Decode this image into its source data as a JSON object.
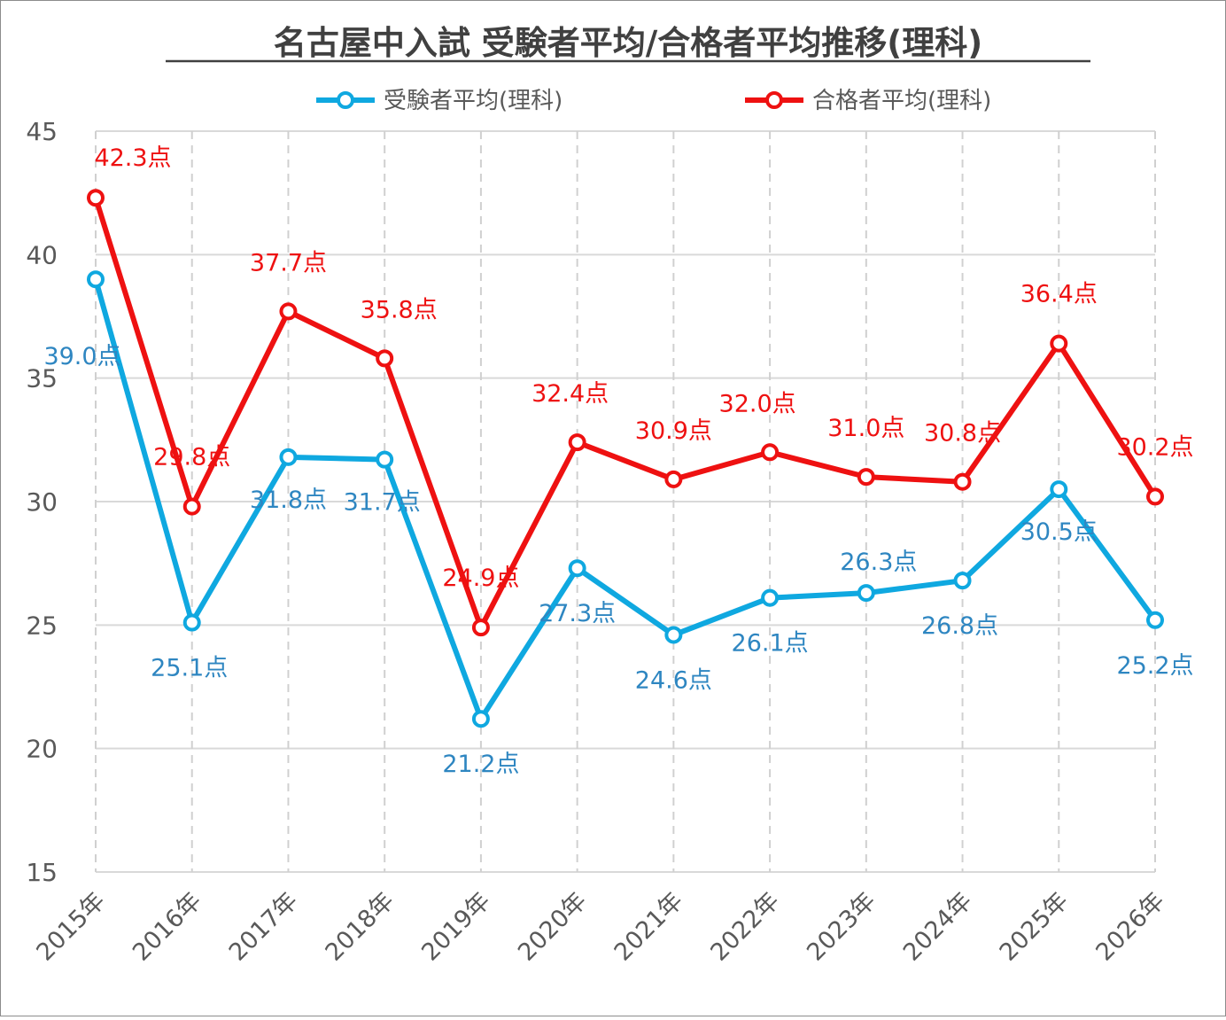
{
  "chart_data": {
    "type": "line",
    "title": "名古屋中入試 受験者平均/合格者平均推移(理科)",
    "xlabel": "",
    "ylabel": "",
    "categories": [
      "2015年",
      "2016年",
      "2017年",
      "2018年",
      "2019年",
      "2020年",
      "2021年",
      "2022年",
      "2023年",
      "2024年",
      "2025年",
      "2026年"
    ],
    "ylim": [
      15,
      45
    ],
    "yticks": [
      "15",
      "20",
      "25",
      "30",
      "35",
      "40",
      "45"
    ],
    "grid": true,
    "legend": "top",
    "label_suffix": "点",
    "series": [
      {
        "name": "受験者平均(理科)",
        "color": "#0fa8e0",
        "label_color": "#2e86c1",
        "values": [
          39.0,
          25.1,
          31.8,
          31.7,
          21.2,
          27.3,
          24.6,
          26.1,
          26.3,
          26.8,
          30.5,
          25.2
        ]
      },
      {
        "name": "合格者平均(理科)",
        "color": "#ee1111",
        "label_color": "#ee1111",
        "values": [
          42.3,
          29.8,
          37.7,
          35.8,
          24.9,
          32.4,
          30.9,
          32.0,
          31.0,
          30.8,
          36.4,
          30.2
        ]
      }
    ]
  }
}
